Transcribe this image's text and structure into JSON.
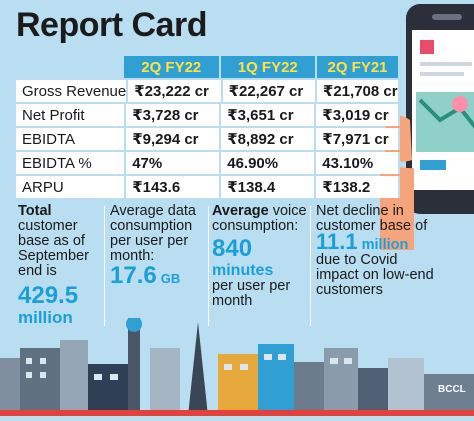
{
  "title": "Report Card",
  "table": {
    "columns": [
      "2Q FY22",
      "1Q FY22",
      "2Q FY21"
    ],
    "rows": [
      {
        "label": "Gross Revenue",
        "values": [
          "₹23,222 cr",
          "₹22,267 cr",
          "₹21,708 cr"
        ]
      },
      {
        "label": "Net Profit",
        "values": [
          "₹3,728 cr",
          "₹3,651 cr",
          "₹3,019 cr"
        ]
      },
      {
        "label": "EBIDTA",
        "values": [
          "₹9,294 cr",
          "₹8,892 cr",
          "₹7,971 cr"
        ]
      },
      {
        "label": "EBIDTA %",
        "values": [
          "47%",
          "46.90%",
          "43.10%"
        ]
      },
      {
        "label": "ARPU",
        "values": [
          "₹143.6",
          "₹138.4",
          "₹138.2"
        ]
      }
    ]
  },
  "stats": {
    "customer_base": {
      "bold_lead": "Total",
      "text": "customer base as of September end is",
      "value": "429.5",
      "unit": "million"
    },
    "data_consumption": {
      "text": "Average data consumption per user per month:",
      "value": "17.6",
      "unit": "GB"
    },
    "voice_consumption": {
      "bold_lead": "Average",
      "text": "voice consumption:",
      "value": "840",
      "unit": "minutes",
      "suffix": "per user per month"
    },
    "net_decline": {
      "text_before": "Net decline in customer base of",
      "value": "11.1",
      "unit": "million",
      "text_after": "due to Covid impact on low-end customers"
    }
  },
  "credit": "BCCL",
  "colors": {
    "background": "#b9def2",
    "header": "#2f9fd4",
    "header_text": "#ffe23f",
    "accent": "#1aa0d8"
  }
}
